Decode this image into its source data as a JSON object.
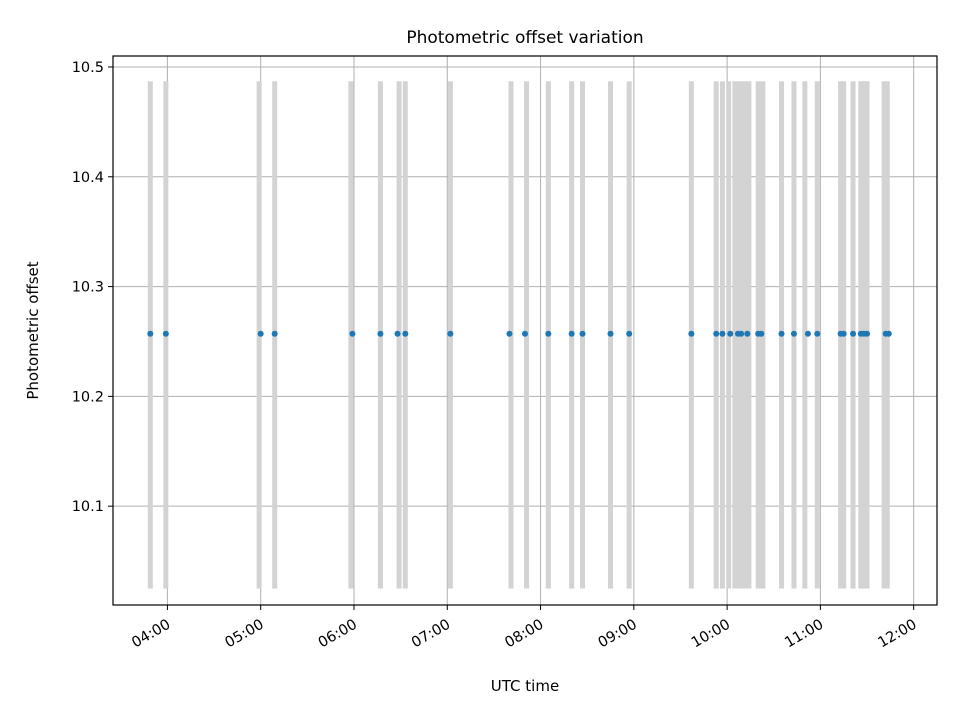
{
  "chart_data": {
    "type": "scatter",
    "title": "Photometric offset variation",
    "xlabel": "UTC time",
    "ylabel": "Photometric offset",
    "x_tick_labels": [
      "04:00",
      "05:00",
      "06:00",
      "07:00",
      "08:00",
      "09:00",
      "10:00",
      "11:00",
      "12:00"
    ],
    "y_tick_labels": [
      "10.1",
      "10.2",
      "10.3",
      "10.4",
      "10.5"
    ],
    "ylim": [
      10.01,
      10.51
    ],
    "xlim": [
      "03:25",
      "12:15"
    ],
    "grid": true,
    "colors": {
      "points": "#1f77b4",
      "markers": "#d3d3d3",
      "grid": "#b0b0b0"
    },
    "vertical_markers": {
      "ymin": 10.025,
      "ymax": 10.487,
      "x": [
        "03:49",
        "03:59",
        "04:59",
        "05:09",
        "05:58",
        "06:17",
        "06:29",
        "06:33",
        "07:02",
        "07:41",
        "07:51",
        "08:05",
        "08:20",
        "08:27",
        "08:45",
        "08:57",
        "09:37",
        "09:53",
        "09:57",
        "10:01",
        "10:05",
        "10:08",
        "10:11",
        "10:14",
        "10:20",
        "10:23",
        "10:35",
        "10:43",
        "10:50",
        "10:58",
        "11:13",
        "11:15",
        "11:21",
        "11:26",
        "11:28",
        "11:30",
        "11:41",
        "11:43"
      ]
    },
    "points": {
      "y": 10.257,
      "x": [
        "03:49",
        "03:59",
        "05:00",
        "05:09",
        "05:59",
        "06:17",
        "06:28",
        "06:33",
        "07:02",
        "07:40",
        "07:50",
        "08:05",
        "08:20",
        "08:27",
        "08:45",
        "08:57",
        "09:37",
        "09:53",
        "09:57",
        "10:02",
        "10:07",
        "10:09",
        "10:13",
        "10:20",
        "10:22",
        "10:35",
        "10:43",
        "10:52",
        "10:58",
        "11:13",
        "11:15",
        "11:21",
        "11:26",
        "11:28",
        "11:30",
        "11:42",
        "11:44"
      ]
    }
  }
}
